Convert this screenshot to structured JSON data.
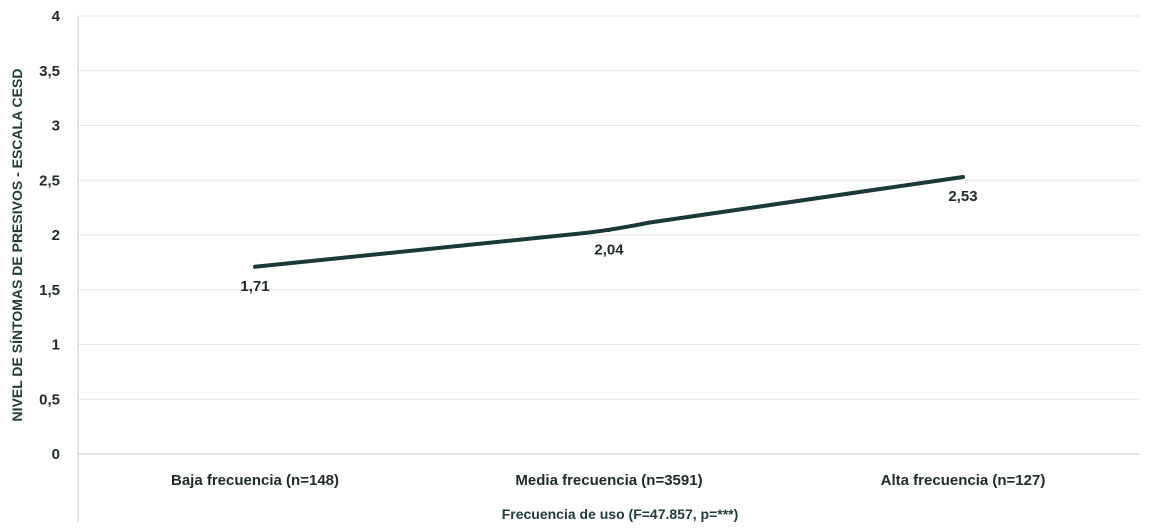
{
  "chart_data": {
    "type": "line",
    "categories": [
      "Baja frecuencia (n=148)",
      "Media frecuencia (n=3591)",
      "Alta frecuencia (n=127)"
    ],
    "series": [
      {
        "values": [
          1.71,
          2.04,
          2.53
        ],
        "data_labels": [
          "1,71",
          "2,04",
          "2,53"
        ],
        "color": "#1a3a38"
      }
    ],
    "xlabel": "Frecuencia de uso (F=47.857, p=***)",
    "ylabel": "NIVEL DE SÍNTOMAS DE PRESIVOS - ESCALA CESD",
    "ylim": [
      0,
      4
    ],
    "yticks": [
      0,
      0.5,
      1,
      1.5,
      2,
      2.5,
      3,
      3.5,
      4
    ],
    "ytick_labels": [
      "0",
      "0,5",
      "1",
      "1,5",
      "2",
      "2,5",
      "3",
      "3,5",
      "4"
    ],
    "grid": true,
    "legend": "none"
  }
}
